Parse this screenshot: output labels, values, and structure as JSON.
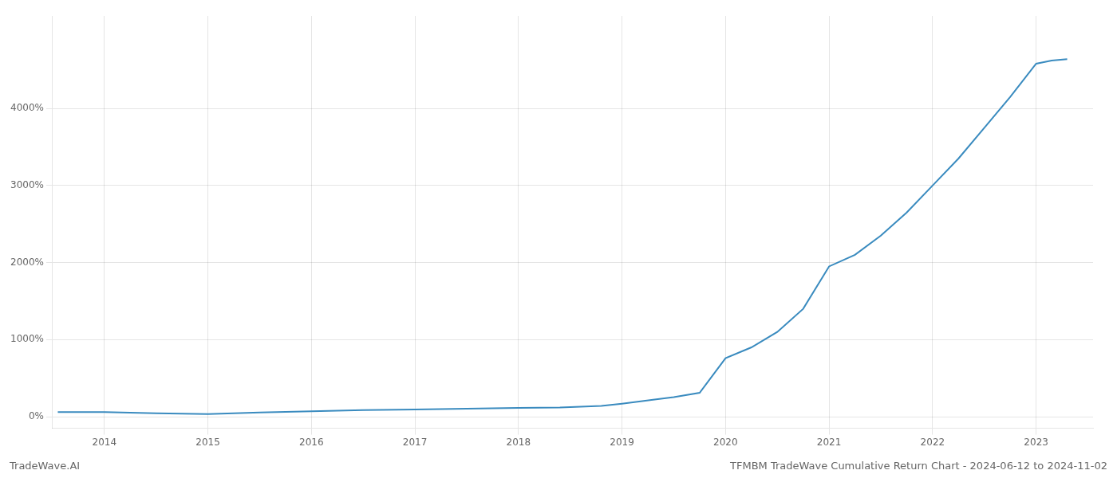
{
  "chart_data": {
    "type": "line",
    "title": "TFMBM TradeWave Cumulative Return Chart - 2024-06-12 to 2024-11-02",
    "annotations": [
      "TradeWave.AI"
    ],
    "x": [
      2013.55,
      2014.0,
      2014.5,
      2015.0,
      2015.5,
      2016.0,
      2016.5,
      2017.0,
      2017.5,
      2018.0,
      2018.4,
      2018.8,
      2019.0,
      2019.3,
      2019.5,
      2019.75,
      2020.0,
      2020.25,
      2020.5,
      2020.75,
      2021.0,
      2021.25,
      2021.5,
      2021.75,
      2022.0,
      2022.25,
      2022.5,
      2022.75,
      2023.0,
      2023.15,
      2023.3
    ],
    "values": [
      60,
      60,
      45,
      35,
      55,
      70,
      85,
      95,
      105,
      115,
      120,
      140,
      170,
      220,
      255,
      310,
      760,
      900,
      1100,
      1400,
      1950,
      2100,
      2350,
      2650,
      3000,
      3350,
      3750,
      4150,
      4580,
      4620,
      4640
    ],
    "color": "#3a8bbf",
    "xlim": [
      2013.5,
      2023.55
    ],
    "xticks": [
      2014,
      2015,
      2016,
      2017,
      2018,
      2019,
      2020,
      2021,
      2022,
      2023
    ],
    "ylim": [
      -150,
      5200
    ],
    "yticks": [
      {
        "value": 0,
        "label": "0%"
      },
      {
        "value": 1000,
        "label": "1000%"
      },
      {
        "value": 2000,
        "label": "2000%"
      },
      {
        "value": 3000,
        "label": "3000%"
      },
      {
        "value": 4000,
        "label": "4000%"
      }
    ],
    "grid": true
  }
}
